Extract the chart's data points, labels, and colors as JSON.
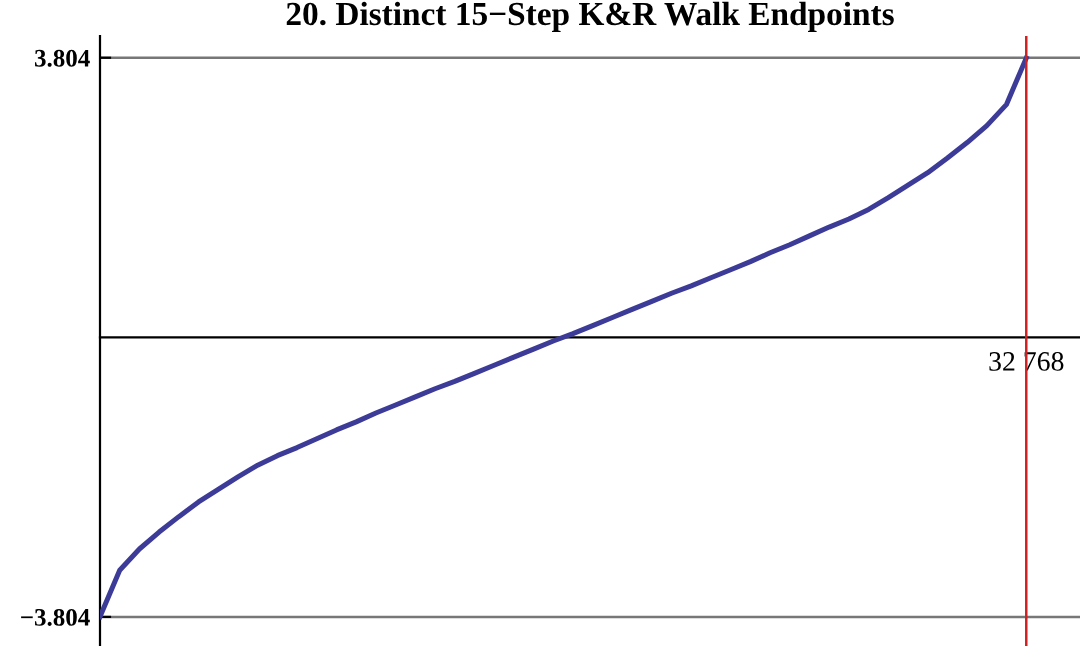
{
  "chart_data": {
    "type": "line",
    "title": "20. Distinct 15−Step K&R Walk Endpoints",
    "categories": [
      null,
      null,
      null,
      null,
      null,
      null,
      null,
      null,
      null,
      null,
      null,
      null,
      null,
      null,
      null,
      null,
      null,
      null,
      null,
      null,
      null,
      null,
      null,
      null,
      null,
      null,
      null,
      null,
      null,
      null,
      null,
      null,
      null,
      null,
      null,
      null,
      null,
      null,
      null,
      null,
      null,
      null,
      null,
      null,
      null,
      null,
      null,
      "32 768"
    ],
    "series": [
      {
        "color": "#3c3c98",
        "values": [
          -3.8,
          -3.17,
          -2.88,
          -2.65,
          -2.44,
          -2.24,
          -2.07,
          -1.9,
          -1.74,
          -1.61,
          -1.5,
          -1.38,
          -1.26,
          -1.15,
          -1.03,
          -0.92,
          -0.81,
          -0.7,
          -0.6,
          -0.49,
          -0.38,
          -0.27,
          -0.16,
          -0.05,
          0.05,
          0.16,
          0.27,
          0.38,
          0.49,
          0.6,
          0.7,
          0.81,
          0.92,
          1.03,
          1.15,
          1.26,
          1.38,
          1.5,
          1.61,
          1.74,
          1.9,
          2.07,
          2.24,
          2.44,
          2.65,
          2.88,
          3.17,
          3.8
        ]
      }
    ],
    "ylim": [
      -4.2,
      4.1
    ],
    "yticks": [
      {
        "value": -3.804,
        "label": "−3.804"
      },
      {
        "value": 3.804,
        "label": "3.804"
      }
    ],
    "grid": "y",
    "ref_lines": [
      {
        "axis": "x",
        "value": "32 768",
        "color": "#cc2222"
      }
    ]
  }
}
